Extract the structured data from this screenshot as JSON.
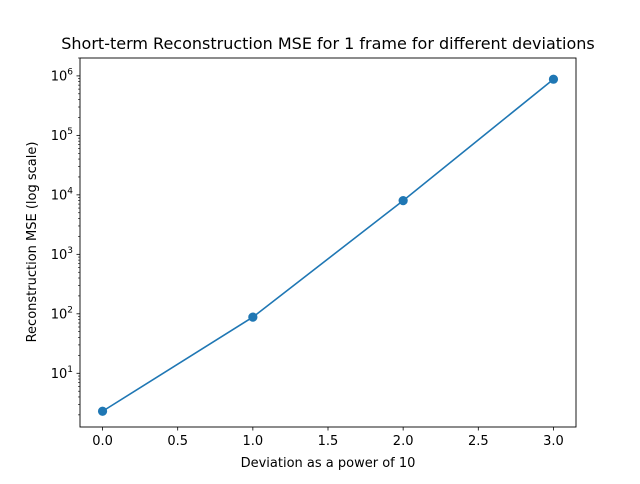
{
  "chart_data": {
    "type": "line",
    "title": "Short-term Reconstruction MSE for 1 frame for different deviations",
    "xlabel": "Deviation as a power of 10",
    "ylabel": "Reconstruction MSE (log scale)",
    "xlim": [
      -0.15,
      3.15
    ],
    "ylim": [
      1.25,
      2000000
    ],
    "yscale": "log",
    "x_ticks": [
      0.0,
      0.5,
      1.0,
      1.5,
      2.0,
      2.5,
      3.0
    ],
    "x_tick_labels": [
      "0.0",
      "0.5",
      "1.0",
      "1.5",
      "2.0",
      "2.5",
      "3.0"
    ],
    "y_tick_exponents": [
      1,
      2,
      3,
      4,
      5,
      6
    ],
    "y_tick_base": "10",
    "grid": false,
    "series": [
      {
        "x": [
          0,
          1,
          2,
          3
        ],
        "y": [
          2.3,
          88,
          8000,
          880000
        ],
        "marker": "circle",
        "color": "#1f77b4"
      }
    ]
  }
}
